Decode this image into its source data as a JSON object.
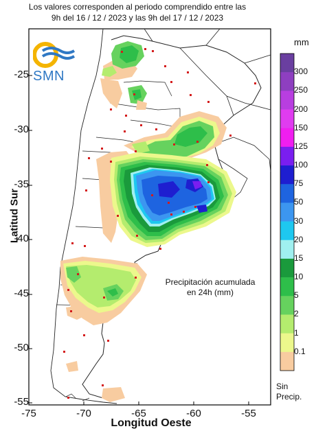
{
  "header": {
    "line1": "Los valores corresponden al periodo comprendido entre las",
    "line2": "9h del 16 / 12 / 2023  y las 9h del 17 / 12 / 2023"
  },
  "axes": {
    "xlabel": "Longitud Oeste",
    "ylabel": "Latitud Sur",
    "xticks": [
      "-75",
      "-70",
      "-65",
      "-60",
      "-55"
    ],
    "yticks": [
      "-25",
      "-30",
      "-35",
      "-40",
      "-45",
      "-50",
      "-55"
    ]
  },
  "legend": {
    "unit": "mm",
    "levels": [
      "300",
      "250",
      "200",
      "150",
      "125",
      "100",
      "75",
      "50",
      "30",
      "20",
      "15",
      "10",
      "5",
      "2",
      "1",
      "0.1"
    ],
    "colors": [
      "#6a3fa0",
      "#8e3fc0",
      "#b83ee0",
      "#e03cf0",
      "#f01ef0",
      "#7a1ef0",
      "#1e1ed0",
      "#1e64e0",
      "#3c96f0",
      "#1ec8f0",
      "#a0f0f0",
      "#1a9a3c",
      "#2ebe4a",
      "#66d25e",
      "#b4ec6e",
      "#ecf88c",
      "#f8cca0"
    ],
    "no_data_label": "Sin\nPrecip."
  },
  "annotation": "Precipitación acumulada\nen 24h (mm)",
  "logo_text": "SMN"
}
